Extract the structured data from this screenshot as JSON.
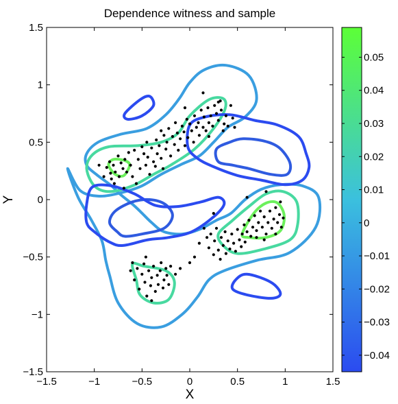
{
  "chart_data": {
    "type": "scatter",
    "title": "Dependence witness and sample",
    "xlabel": "X",
    "ylabel": "Y",
    "xlim": [
      -1.5,
      1.5
    ],
    "ylim": [
      -1.5,
      1.5
    ],
    "xticks": [
      "−1.5",
      "−1",
      "−0.5",
      "0",
      "0.5",
      "1",
      "1.5"
    ],
    "yticks": [
      "−1.5",
      "−1",
      "−0.5",
      "0",
      "0.5",
      "1",
      "1.5"
    ],
    "colorbar": {
      "range": [
        -0.045,
        0.059
      ],
      "ticks": [
        "−0.04",
        "−0.03",
        "−0.02",
        "−0.01",
        "0",
        "0.01",
        "0.02",
        "0.03",
        "0.04",
        "0.05"
      ],
      "colors": [
        "#2b4bf0",
        "#3bc0de",
        "#5cff37"
      ]
    },
    "contours": [
      {
        "level": 0.008,
        "color": "#3a9ee0",
        "path": [
          [
            -1.28,
            0.27
          ],
          [
            -1.17,
            0.02
          ],
          [
            -1.03,
            -0.18
          ],
          [
            -0.92,
            -0.36
          ],
          [
            -0.88,
            -0.53
          ],
          [
            -0.84,
            -0.66
          ],
          [
            -0.75,
            -0.9
          ],
          [
            -0.55,
            -1.08
          ],
          [
            -0.3,
            -1.11
          ],
          [
            -0.08,
            -1.0
          ],
          [
            0.08,
            -0.85
          ],
          [
            0.2,
            -0.7
          ],
          [
            0.36,
            -0.62
          ],
          [
            0.7,
            -0.53
          ],
          [
            1.05,
            -0.46
          ],
          [
            1.32,
            -0.24
          ],
          [
            1.35,
            0.02
          ],
          [
            1.18,
            0.12
          ],
          [
            0.95,
            0.13
          ],
          [
            0.75,
            0.09
          ],
          [
            0.58,
            0.0
          ],
          [
            0.43,
            -0.12
          ],
          [
            0.28,
            -0.18
          ],
          [
            0.1,
            -0.26
          ],
          [
            -0.08,
            -0.3
          ],
          [
            -0.27,
            -0.28
          ],
          [
            -0.4,
            -0.2
          ],
          [
            -0.51,
            -0.11
          ],
          [
            -0.6,
            -0.04
          ],
          [
            -0.72,
            0.04
          ],
          [
            -0.82,
            0.12
          ],
          [
            -0.98,
            0.22
          ],
          [
            -1.08,
            0.3
          ],
          [
            -1.08,
            0.4
          ],
          [
            -0.96,
            0.5
          ],
          [
            -0.72,
            0.57
          ],
          [
            -0.45,
            0.62
          ],
          [
            -0.25,
            0.74
          ],
          [
            -0.11,
            0.88
          ],
          [
            0.0,
            1.02
          ],
          [
            0.15,
            1.13
          ],
          [
            0.38,
            1.17
          ],
          [
            0.62,
            1.08
          ],
          [
            0.7,
            0.87
          ],
          [
            0.58,
            0.72
          ],
          [
            0.4,
            0.63
          ],
          [
            0.25,
            0.5
          ],
          [
            0.1,
            0.38
          ],
          [
            -0.08,
            0.31
          ],
          [
            -0.3,
            0.22
          ],
          [
            -0.5,
            0.12
          ],
          [
            -0.72,
            0.06
          ],
          [
            -0.95,
            0.03
          ],
          [
            -1.15,
            0.08
          ]
        ]
      },
      {
        "level": 0.03,
        "color": "#48d9a0",
        "path": [
          [
            -1.08,
            0.27
          ],
          [
            -1.0,
            0.12
          ],
          [
            -0.84,
            0.07
          ],
          [
            -0.6,
            0.12
          ],
          [
            -0.38,
            0.22
          ],
          [
            -0.2,
            0.3
          ],
          [
            0.05,
            0.44
          ],
          [
            0.25,
            0.62
          ],
          [
            0.37,
            0.79
          ],
          [
            0.35,
            0.88
          ],
          [
            0.2,
            0.87
          ],
          [
            0.0,
            0.73
          ],
          [
            -0.12,
            0.58
          ],
          [
            -0.3,
            0.5
          ],
          [
            -0.55,
            0.47
          ],
          [
            -0.85,
            0.46
          ],
          [
            -1.02,
            0.39
          ]
        ]
      },
      {
        "level": 0.03,
        "color": "#48d9a0",
        "path": [
          [
            0.3,
            -0.3
          ],
          [
            0.35,
            -0.4
          ],
          [
            0.5,
            -0.47
          ],
          [
            0.78,
            -0.43
          ],
          [
            1.05,
            -0.35
          ],
          [
            1.13,
            -0.22
          ],
          [
            1.12,
            -0.02
          ],
          [
            0.98,
            0.07
          ],
          [
            0.8,
            0.05
          ],
          [
            0.62,
            -0.06
          ],
          [
            0.45,
            -0.18
          ]
        ]
      },
      {
        "level": 0.03,
        "color": "#48d9a0",
        "path": [
          [
            -0.6,
            -0.56
          ],
          [
            -0.48,
            -0.58
          ],
          [
            -0.25,
            -0.62
          ],
          [
            -0.16,
            -0.72
          ],
          [
            -0.22,
            -0.87
          ],
          [
            -0.38,
            -0.9
          ],
          [
            -0.52,
            -0.83
          ],
          [
            -0.56,
            -0.7
          ]
        ]
      },
      {
        "level": 0.05,
        "color": "#6cf05c",
        "path": [
          [
            -0.85,
            0.3
          ],
          [
            -0.78,
            0.22
          ],
          [
            -0.69,
            0.21
          ],
          [
            -0.63,
            0.3
          ],
          [
            -0.68,
            0.34
          ],
          [
            -0.8,
            0.35
          ]
        ]
      },
      {
        "level": 0.05,
        "color": "#6cf05c",
        "path": [
          [
            0.55,
            -0.3
          ],
          [
            0.62,
            -0.33
          ],
          [
            0.8,
            -0.33
          ],
          [
            0.95,
            -0.27
          ],
          [
            0.99,
            -0.14
          ],
          [
            0.92,
            -0.03
          ],
          [
            0.8,
            -0.03
          ],
          [
            0.67,
            -0.12
          ]
        ]
      },
      {
        "level": -0.02,
        "color": "#2f5be0",
        "path": [
          [
            -0.76,
            -0.28
          ],
          [
            -0.84,
            -0.2
          ],
          [
            -0.78,
            -0.1
          ],
          [
            -0.6,
            -0.02
          ],
          [
            -0.42,
            0.0
          ],
          [
            -0.26,
            -0.04
          ],
          [
            -0.18,
            -0.14
          ],
          [
            -0.27,
            -0.25
          ],
          [
            -0.5,
            -0.3
          ],
          [
            -0.68,
            -0.32
          ]
        ]
      },
      {
        "level": -0.02,
        "color": "#2f5be0",
        "path": [
          [
            0.28,
            0.44
          ],
          [
            0.42,
            0.5
          ],
          [
            0.56,
            0.53
          ],
          [
            0.78,
            0.51
          ],
          [
            0.94,
            0.45
          ],
          [
            1.05,
            0.32
          ],
          [
            1.02,
            0.22
          ],
          [
            0.85,
            0.22
          ],
          [
            0.62,
            0.27
          ],
          [
            0.45,
            0.3
          ],
          [
            0.3,
            0.33
          ]
        ]
      },
      {
        "level": -0.03,
        "color": "#2b4bf0",
        "path": [
          [
            -0.68,
            0.75
          ],
          [
            -0.52,
            0.87
          ],
          [
            -0.42,
            0.9
          ],
          [
            -0.38,
            0.82
          ],
          [
            -0.5,
            0.73
          ],
          [
            -0.65,
            0.7
          ]
        ]
      },
      {
        "level": -0.03,
        "color": "#2b4bf0",
        "path": [
          [
            0.45,
            -0.78
          ],
          [
            0.6,
            -0.83
          ],
          [
            0.85,
            -0.86
          ],
          [
            0.95,
            -0.82
          ],
          [
            0.85,
            -0.72
          ],
          [
            0.6,
            -0.65
          ],
          [
            0.48,
            -0.7
          ]
        ]
      },
      {
        "level": -0.03,
        "color": "#2b4bf0",
        "path": [
          [
            -1.0,
            -0.28
          ],
          [
            -0.84,
            -0.37
          ],
          [
            -0.7,
            -0.4
          ],
          [
            -0.44,
            -0.35
          ],
          [
            -0.22,
            -0.33
          ],
          [
            0.02,
            -0.28
          ],
          [
            0.25,
            -0.15
          ],
          [
            0.36,
            -0.04
          ],
          [
            0.3,
            0.02
          ],
          [
            0.12,
            -0.02
          ],
          [
            -0.12,
            -0.06
          ],
          [
            -0.36,
            -0.05
          ],
          [
            -0.58,
            0.05
          ],
          [
            -0.82,
            0.12
          ],
          [
            -1.02,
            0.11
          ],
          [
            -1.08,
            -0.04
          ],
          [
            -1.08,
            -0.2
          ]
        ]
      },
      {
        "level": -0.03,
        "color": "#2b4bf0",
        "path": [
          [
            0.0,
            0.65
          ],
          [
            0.16,
            0.72
          ],
          [
            0.42,
            0.74
          ],
          [
            0.68,
            0.69
          ],
          [
            0.92,
            0.65
          ],
          [
            1.14,
            0.55
          ],
          [
            1.22,
            0.4
          ],
          [
            1.25,
            0.28
          ],
          [
            1.18,
            0.17
          ],
          [
            1.0,
            0.13
          ],
          [
            0.75,
            0.17
          ],
          [
            0.5,
            0.21
          ],
          [
            0.24,
            0.29
          ],
          [
            0.08,
            0.36
          ],
          [
            -0.02,
            0.46
          ]
        ]
      }
    ],
    "points": [
      [
        -0.87,
        0.28
      ],
      [
        -0.84,
        0.33
      ],
      [
        -0.83,
        0.23
      ],
      [
        -0.82,
        0.18
      ],
      [
        -0.8,
        0.3
      ],
      [
        -0.79,
        0.14
      ],
      [
        -0.78,
        0.24
      ],
      [
        -0.75,
        0.38
      ],
      [
        -0.74,
        0.2
      ],
      [
        -0.72,
        0.32
      ],
      [
        -0.7,
        0.27
      ],
      [
        -0.69,
        0.1
      ],
      [
        -0.68,
        0.35
      ],
      [
        -0.66,
        0.24
      ],
      [
        -0.64,
        0.41
      ],
      [
        -0.62,
        0.3
      ],
      [
        -0.6,
        0.2
      ],
      [
        -0.58,
        0.43
      ],
      [
        -0.56,
        0.14
      ],
      [
        -0.54,
        0.35
      ],
      [
        -0.52,
        0.27
      ],
      [
        -0.5,
        0.46
      ],
      [
        -0.48,
        0.4
      ],
      [
        -0.46,
        0.3
      ],
      [
        -0.45,
        0.5
      ],
      [
        -0.44,
        0.37
      ],
      [
        -0.42,
        0.22
      ],
      [
        -0.4,
        0.45
      ],
      [
        -0.38,
        0.33
      ],
      [
        -0.36,
        0.29
      ],
      [
        -0.35,
        0.52
      ],
      [
        -0.34,
        0.4
      ],
      [
        -0.32,
        0.47
      ],
      [
        -0.3,
        0.36
      ],
      [
        -0.28,
        0.27
      ],
      [
        -0.27,
        0.56
      ],
      [
        -0.25,
        0.44
      ],
      [
        -0.24,
        0.5
      ],
      [
        -0.22,
        0.62
      ],
      [
        -0.2,
        0.38
      ],
      [
        -0.18,
        0.55
      ],
      [
        -0.16,
        0.48
      ],
      [
        -0.15,
        0.67
      ],
      [
        -0.13,
        0.58
      ],
      [
        -0.12,
        0.43
      ],
      [
        -0.1,
        0.53
      ],
      [
        -0.08,
        0.64
      ],
      [
        -0.06,
        0.59
      ],
      [
        -0.05,
        0.47
      ],
      [
        -0.03,
        0.7
      ],
      [
        -0.02,
        0.54
      ],
      [
        0.0,
        0.66
      ],
      [
        0.02,
        0.6
      ],
      [
        0.04,
        0.5
      ],
      [
        0.05,
        0.73
      ],
      [
        0.07,
        0.63
      ],
      [
        0.09,
        0.67
      ],
      [
        0.1,
        0.56
      ],
      [
        0.12,
        0.78
      ],
      [
        0.14,
        0.63
      ],
      [
        0.15,
        0.72
      ],
      [
        0.17,
        0.6
      ],
      [
        0.19,
        0.8
      ],
      [
        0.2,
        0.67
      ],
      [
        0.22,
        0.73
      ],
      [
        0.24,
        0.64
      ],
      [
        0.26,
        0.82
      ],
      [
        0.28,
        0.75
      ],
      [
        0.3,
        0.69
      ],
      [
        0.32,
        0.86
      ],
      [
        0.33,
        0.78
      ],
      [
        0.36,
        0.66
      ],
      [
        0.38,
        0.73
      ],
      [
        0.4,
        0.64
      ],
      [
        0.43,
        0.82
      ],
      [
        0.45,
        0.71
      ],
      [
        0.47,
        0.63
      ],
      [
        0.14,
        0.93
      ],
      [
        0.2,
        0.55
      ],
      [
        -0.05,
        0.8
      ],
      [
        0.15,
        -0.25
      ],
      [
        0.18,
        -0.33
      ],
      [
        0.2,
        -0.42
      ],
      [
        0.22,
        -0.3
      ],
      [
        0.25,
        -0.48
      ],
      [
        0.26,
        -0.36
      ],
      [
        0.28,
        -0.25
      ],
      [
        0.3,
        -0.44
      ],
      [
        0.32,
        -0.52
      ],
      [
        0.33,
        -0.33
      ],
      [
        0.35,
        -0.4
      ],
      [
        0.37,
        -0.28
      ],
      [
        0.38,
        -0.47
      ],
      [
        0.4,
        -0.36
      ],
      [
        0.42,
        -0.43
      ],
      [
        0.44,
        -0.3
      ],
      [
        0.46,
        -0.38
      ],
      [
        0.48,
        -0.45
      ],
      [
        0.5,
        -0.26
      ],
      [
        0.52,
        -0.35
      ],
      [
        0.54,
        -0.41
      ],
      [
        0.55,
        -0.3
      ],
      [
        0.57,
        -0.22
      ],
      [
        0.58,
        -0.37
      ],
      [
        0.6,
        -0.28
      ],
      [
        0.62,
        -0.18
      ],
      [
        0.64,
        -0.32
      ],
      [
        0.66,
        -0.24
      ],
      [
        0.68,
        -0.14
      ],
      [
        0.7,
        -0.27
      ],
      [
        0.72,
        -0.2
      ],
      [
        0.74,
        -0.1
      ],
      [
        0.76,
        -0.24
      ],
      [
        0.78,
        -0.15
      ],
      [
        0.8,
        -0.3
      ],
      [
        0.82,
        -0.2
      ],
      [
        0.84,
        -0.1
      ],
      [
        0.86,
        -0.25
      ],
      [
        0.88,
        -0.17
      ],
      [
        0.9,
        -0.07
      ],
      [
        0.92,
        -0.2
      ],
      [
        0.94,
        -0.13
      ],
      [
        0.96,
        -0.24
      ],
      [
        0.98,
        -0.16
      ],
      [
        0.7,
        -0.33
      ],
      [
        0.78,
        -0.35
      ],
      [
        0.9,
        -0.3
      ],
      [
        0.25,
        -0.12
      ],
      [
        0.1,
        -0.38
      ],
      [
        0.05,
        -0.5
      ],
      [
        -0.62,
        -0.62
      ],
      [
        -0.6,
        -0.55
      ],
      [
        -0.58,
        -0.7
      ],
      [
        -0.55,
        -0.6
      ],
      [
        -0.53,
        -0.78
      ],
      [
        -0.5,
        -0.65
      ],
      [
        -0.48,
        -0.56
      ],
      [
        -0.47,
        -0.72
      ],
      [
        -0.45,
        -0.84
      ],
      [
        -0.43,
        -0.62
      ],
      [
        -0.41,
        -0.75
      ],
      [
        -0.4,
        -0.68
      ],
      [
        -0.38,
        -0.58
      ],
      [
        -0.36,
        -0.8
      ],
      [
        -0.34,
        -0.66
      ],
      [
        -0.33,
        -0.74
      ],
      [
        -0.31,
        -0.62
      ],
      [
        -0.3,
        -0.55
      ],
      [
        -0.28,
        -0.77
      ],
      [
        -0.27,
        -0.7
      ],
      [
        -0.25,
        -0.6
      ],
      [
        -0.24,
        -0.66
      ],
      [
        -0.22,
        -0.74
      ],
      [
        -0.2,
        -0.58
      ],
      [
        -0.4,
        -0.88
      ],
      [
        -0.46,
        -0.5
      ],
      [
        -0.15,
        -0.65
      ],
      [
        -0.1,
        -0.6
      ],
      [
        0.6,
        0.02
      ],
      [
        0.8,
        0.07
      ],
      [
        0.95,
        -0.02
      ],
      [
        -0.95,
        0.3
      ],
      [
        -0.9,
        0.2
      ],
      [
        0.3,
        0.85
      ],
      [
        0.35,
        0.6
      ],
      [
        -0.3,
        0.6
      ],
      [
        0.0,
        -0.55
      ]
    ]
  }
}
